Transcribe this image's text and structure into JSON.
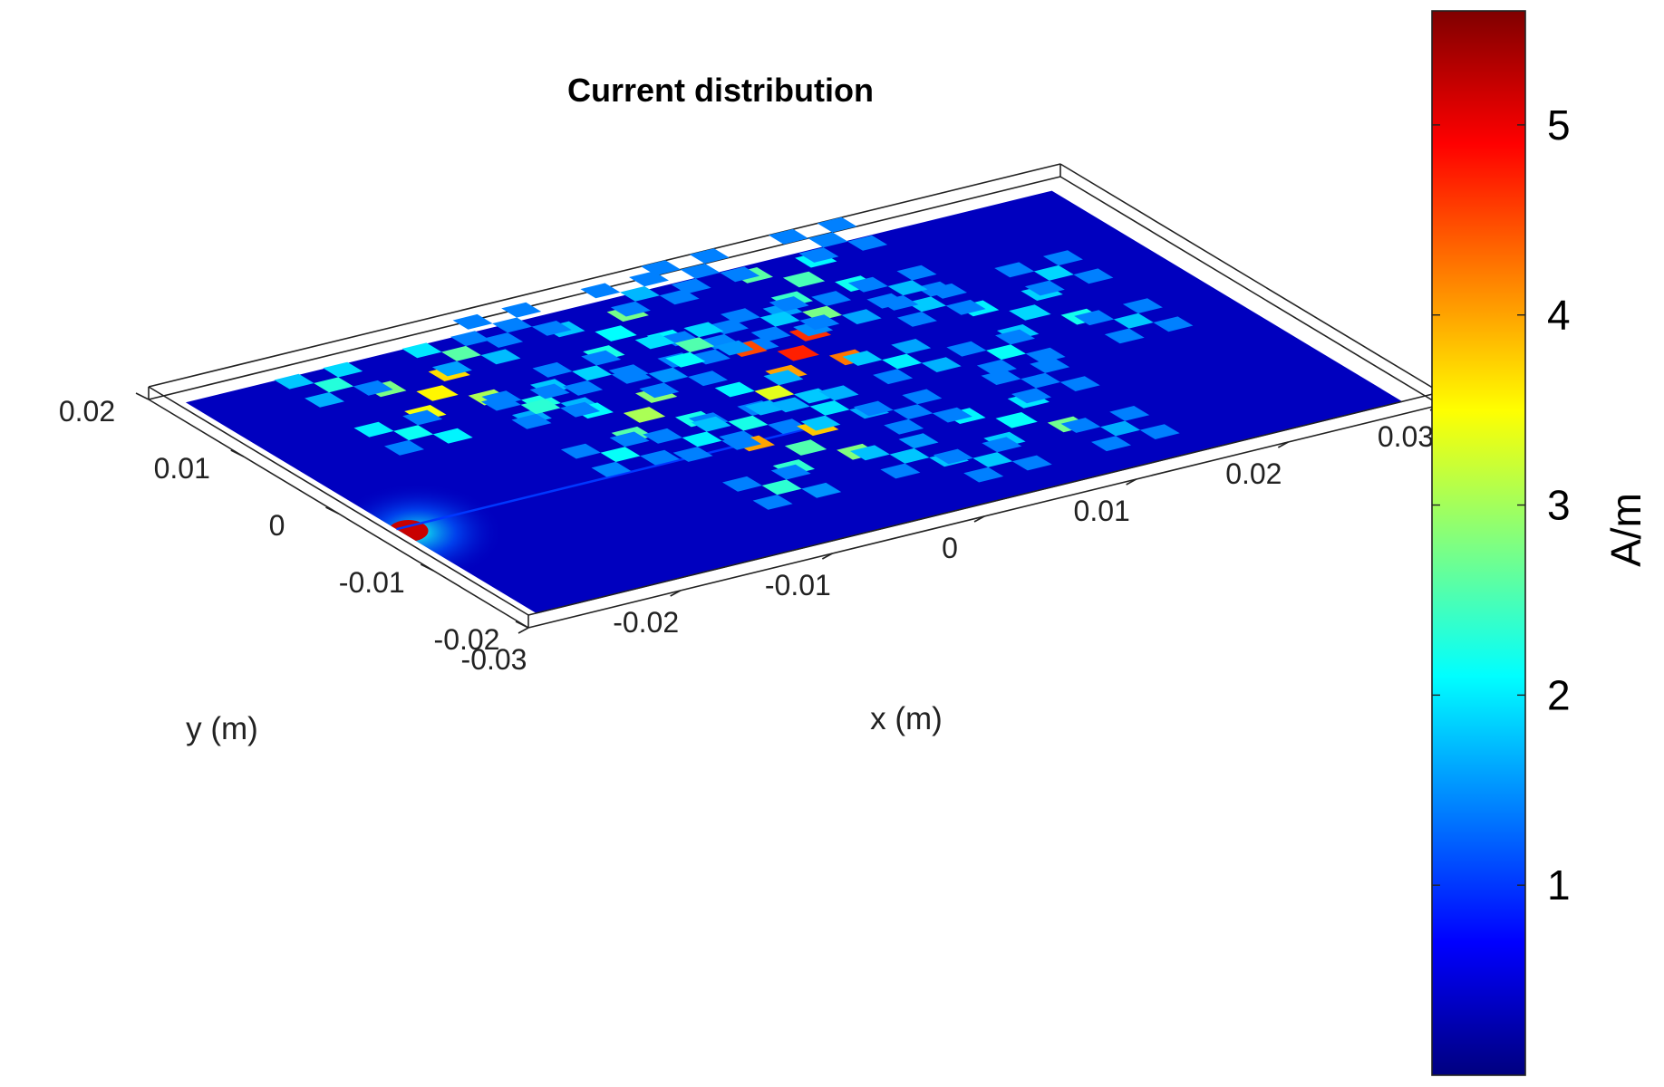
{
  "chart_data": {
    "type": "heatmap",
    "title": "Current distribution",
    "xlabel": "x (m)",
    "ylabel": "y (m)",
    "xlim": [
      -0.03,
      0.03
    ],
    "ylim": [
      -0.02,
      0.02
    ],
    "x_ticks": [
      "-0.03",
      "-0.02",
      "-0.01",
      "0",
      "0.01",
      "0.02",
      "0.03"
    ],
    "y_ticks": [
      "-0.02",
      "-0.01",
      "0",
      "0.01",
      "0.02"
    ],
    "colorbar": {
      "label": "A/m",
      "colormap": "jet",
      "range": [
        0,
        5.6
      ],
      "ticks": [
        "1",
        "2",
        "3",
        "4",
        "5"
      ]
    },
    "substrate": {
      "x_range": [
        -0.0285,
        0.0285
      ],
      "y_range": [
        -0.0185,
        0.0185
      ],
      "value": 0.35
    },
    "feed": {
      "x": -0.0285,
      "y": -0.004,
      "value": 5.2
    },
    "fractal_elements": [
      {
        "x": -0.016,
        "y": 0.012,
        "peak": 4.6
      },
      {
        "x": -0.003,
        "y": 0.014,
        "peak": 2.8
      },
      {
        "x": -0.008,
        "y": 0.003,
        "peak": 3.4
      },
      {
        "x": 0.004,
        "y": 0.006,
        "peak": 4.8
      },
      {
        "x": -0.003,
        "y": -0.006,
        "peak": 4.2
      },
      {
        "x": 0.009,
        "y": -0.009,
        "peak": 3.0
      },
      {
        "x": 0.018,
        "y": 0.004,
        "peak": 3.2
      },
      {
        "x": 0.01,
        "y": 0.015,
        "peak": 2.6
      }
    ]
  }
}
